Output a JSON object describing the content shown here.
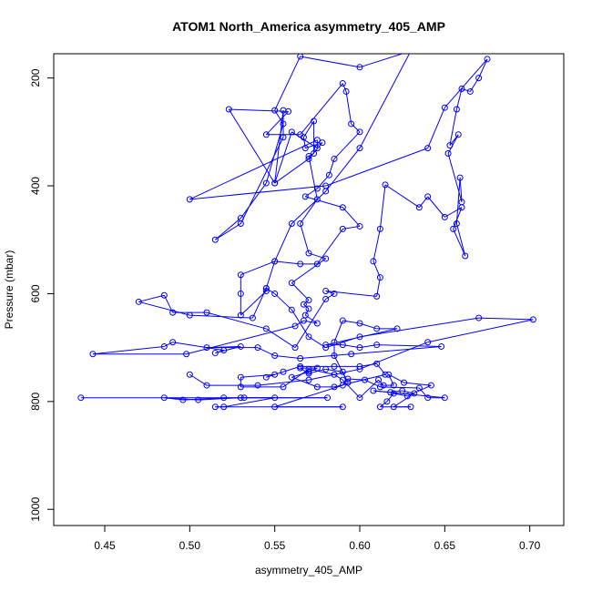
{
  "chart_data": {
    "type": "scatter",
    "mode": "lines+markers",
    "title": "ATOM1 North_America asymmetry_405_AMP",
    "xlabel": "asymmetry_405_AMP",
    "ylabel": "Pressure (mbar)",
    "xlim": [
      0.42,
      0.72
    ],
    "ylim": [
      1030,
      155
    ],
    "y_inverted": true,
    "x_ticks": [
      0.45,
      0.5,
      0.55,
      0.6,
      0.65,
      0.7
    ],
    "x_tick_labels": [
      "0.45",
      "0.50",
      "0.55",
      "0.60",
      "0.65",
      "0.70"
    ],
    "y_ticks": [
      200,
      400,
      600,
      800,
      1000
    ],
    "y_tick_labels": [
      "200",
      "400",
      "600",
      "800",
      "1000"
    ],
    "series": [
      {
        "name": "asymmetry_405_AMP",
        "color": "#0000ff",
        "points": [
          [
            0.436,
            793
          ],
          [
            0.581,
            793
          ],
          [
            0.53,
            793
          ],
          [
            0.505,
            797
          ],
          [
            0.485,
            793
          ],
          [
            0.496,
            797
          ],
          [
            0.52,
            793
          ],
          [
            0.532,
            793
          ],
          [
            0.55,
            793
          ],
          [
            0.52,
            810
          ],
          [
            0.515,
            810
          ],
          [
            0.59,
            810
          ],
          [
            0.55,
            810
          ],
          [
            0.59,
            770
          ],
          [
            0.593,
            758
          ],
          [
            0.603,
            760
          ],
          [
            0.612,
            773
          ],
          [
            0.635,
            775
          ],
          [
            0.64,
            793
          ],
          [
            0.65,
            793
          ],
          [
            0.608,
            780
          ],
          [
            0.618,
            783
          ],
          [
            0.625,
            780
          ],
          [
            0.632,
            785
          ],
          [
            0.62,
            810
          ],
          [
            0.63,
            810
          ],
          [
            0.612,
            810
          ],
          [
            0.616,
            800
          ],
          [
            0.62,
            785
          ],
          [
            0.628,
            790
          ],
          [
            0.642,
            770
          ],
          [
            0.626,
            765
          ],
          [
            0.617,
            750
          ],
          [
            0.62,
            770
          ],
          [
            0.614,
            770
          ],
          [
            0.611,
            760
          ],
          [
            0.6,
            793
          ],
          [
            0.59,
            760
          ],
          [
            0.585,
            750
          ],
          [
            0.57,
            740
          ],
          [
            0.555,
            773
          ],
          [
            0.53,
            773
          ],
          [
            0.53,
            755
          ],
          [
            0.55,
            750
          ],
          [
            0.545,
            755
          ],
          [
            0.555,
            745
          ],
          [
            0.565,
            735
          ],
          [
            0.585,
            735
          ],
          [
            0.6,
            735
          ],
          [
            0.61,
            730
          ],
          [
            0.615,
            750
          ],
          [
            0.585,
            773
          ],
          [
            0.575,
            773
          ],
          [
            0.56,
            755
          ],
          [
            0.57,
            745
          ],
          [
            0.575,
            738
          ],
          [
            0.565,
            738
          ],
          [
            0.57,
            748
          ],
          [
            0.58,
            740
          ],
          [
            0.59,
            745
          ],
          [
            0.593,
            765
          ],
          [
            0.585,
            715
          ],
          [
            0.585,
            690
          ],
          [
            0.59,
            650
          ],
          [
            0.6,
            655
          ],
          [
            0.61,
            665
          ],
          [
            0.622,
            665
          ],
          [
            0.58,
            695
          ],
          [
            0.59,
            695
          ],
          [
            0.6,
            700
          ],
          [
            0.61,
            695
          ],
          [
            0.648,
            698
          ],
          [
            0.595,
            712
          ],
          [
            0.565,
            720
          ],
          [
            0.55,
            715
          ],
          [
            0.54,
            700
          ],
          [
            0.51,
            700
          ],
          [
            0.53,
            698
          ],
          [
            0.515,
            710
          ],
          [
            0.52,
            705
          ],
          [
            0.49,
            690
          ],
          [
            0.485,
            698
          ],
          [
            0.443,
            712
          ],
          [
            0.498,
            712
          ],
          [
            0.562,
            660
          ],
          [
            0.567,
            650
          ],
          [
            0.575,
            655
          ],
          [
            0.568,
            640
          ],
          [
            0.57,
            628
          ],
          [
            0.567,
            620
          ],
          [
            0.57,
            612
          ],
          [
            0.56,
            580
          ],
          [
            0.58,
            535
          ],
          [
            0.57,
            525
          ],
          [
            0.565,
            470
          ],
          [
            0.575,
            425
          ],
          [
            0.57,
            345
          ],
          [
            0.573,
            340
          ],
          [
            0.573,
            280
          ],
          [
            0.567,
            310
          ],
          [
            0.568,
            330
          ],
          [
            0.578,
            320
          ],
          [
            0.57,
            350
          ],
          [
            0.55,
            395
          ],
          [
            0.523,
            258
          ],
          [
            0.558,
            262
          ],
          [
            0.545,
            305
          ],
          [
            0.565,
            305
          ],
          [
            0.59,
            210
          ],
          [
            0.592,
            225
          ],
          [
            0.595,
            285
          ],
          [
            0.6,
            300
          ],
          [
            0.585,
            350
          ],
          [
            0.582,
            380
          ],
          [
            0.575,
            405
          ],
          [
            0.568,
            420
          ],
          [
            0.59,
            440
          ],
          [
            0.6,
            475
          ],
          [
            0.59,
            480
          ],
          [
            0.575,
            545
          ],
          [
            0.565,
            545
          ],
          [
            0.55,
            540
          ],
          [
            0.53,
            565
          ],
          [
            0.53,
            600
          ],
          [
            0.53,
            640
          ],
          [
            0.545,
            595
          ],
          [
            0.545,
            590
          ],
          [
            0.537,
            645
          ],
          [
            0.5,
            640
          ],
          [
            0.47,
            615
          ],
          [
            0.485,
            603
          ],
          [
            0.49,
            635
          ],
          [
            0.51,
            635
          ],
          [
            0.545,
            665
          ],
          [
            0.562,
            700
          ],
          [
            0.58,
            610
          ],
          [
            0.585,
            600
          ],
          [
            0.58,
            595
          ],
          [
            0.61,
            605
          ],
          [
            0.612,
            570
          ],
          [
            0.608,
            540
          ],
          [
            0.612,
            480
          ],
          [
            0.615,
            398
          ],
          [
            0.635,
            440
          ],
          [
            0.64,
            420
          ],
          [
            0.65,
            458
          ],
          [
            0.66,
            440
          ],
          [
            0.655,
            480
          ],
          [
            0.662,
            530
          ],
          [
            0.657,
            470
          ],
          [
            0.659,
            385
          ],
          [
            0.66,
            430
          ],
          [
            0.652,
            340
          ],
          [
            0.658,
            305
          ],
          [
            0.653,
            325
          ],
          [
            0.657,
            258
          ],
          [
            0.66,
            220
          ],
          [
            0.665,
            225
          ],
          [
            0.67,
            200
          ],
          [
            0.675,
            165
          ],
          [
            0.65,
            255
          ],
          [
            0.64,
            330
          ],
          [
            0.58,
            400
          ],
          [
            0.5,
            425
          ],
          [
            0.575,
            315
          ],
          [
            0.575,
            330
          ],
          [
            0.56,
            300
          ],
          [
            0.55,
            395
          ],
          [
            0.555,
            260
          ],
          [
            0.555,
            310
          ],
          [
            0.53,
            470
          ],
          [
            0.515,
            500
          ],
          [
            0.53,
            460
          ],
          [
            0.545,
            395
          ],
          [
            0.555,
            285
          ],
          [
            0.55,
            260
          ],
          [
            0.565,
            160
          ],
          [
            0.6,
            180
          ],
          [
            0.63,
            150
          ],
          [
            0.6,
            330
          ],
          [
            0.58,
            410
          ],
          [
            0.56,
            470
          ],
          [
            0.55,
            540
          ],
          [
            0.545,
            590
          ],
          [
            0.55,
            600
          ],
          [
            0.56,
            630
          ],
          [
            0.57,
            680
          ],
          [
            0.58,
            700
          ],
          [
            0.6,
            680
          ],
          [
            0.67,
            645
          ],
          [
            0.702,
            648
          ],
          [
            0.64,
            690
          ],
          [
            0.6,
            740
          ],
          [
            0.57,
            760
          ],
          [
            0.54,
            770
          ],
          [
            0.51,
            770
          ],
          [
            0.5,
            750
          ]
        ]
      }
    ]
  }
}
